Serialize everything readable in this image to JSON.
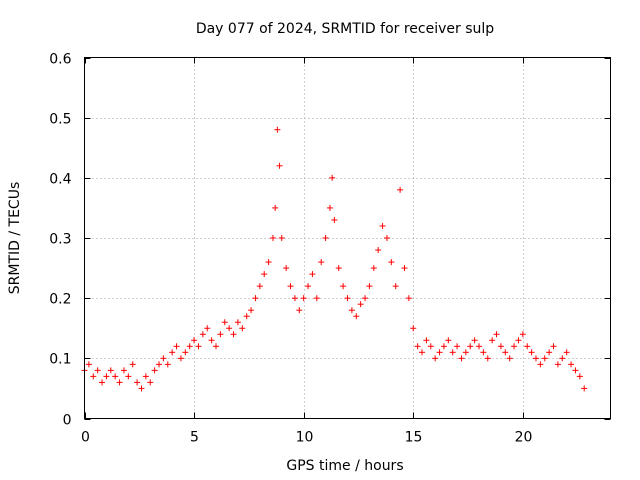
{
  "chart_data": {
    "type": "scatter",
    "title": "Day 077 of 2024, SRMTID for receiver sulp",
    "xlabel": "GPS time / hours",
    "ylabel": "SRMTID / TECUs",
    "xlim": [
      0,
      24
    ],
    "ylim": [
      0,
      0.6
    ],
    "x_ticks": [
      0,
      5,
      10,
      15,
      20
    ],
    "x_tick_labels": [
      "0",
      "5",
      "10",
      "15",
      "20"
    ],
    "y_ticks": [
      0,
      0.1,
      0.2,
      0.3,
      0.4,
      0.5,
      0.6
    ],
    "y_tick_labels": [
      "0",
      "0.1",
      "0.2",
      "0.3",
      "0.4",
      "0.5",
      "0.6"
    ],
    "grid": true,
    "marker": "+",
    "series_color": "#ff0000",
    "series": [
      {
        "name": "SRMTID",
        "x": [
          0.0,
          0.2,
          0.4,
          0.6,
          0.8,
          1.0,
          1.2,
          1.4,
          1.6,
          1.8,
          2.0,
          2.2,
          2.4,
          2.6,
          2.8,
          3.0,
          3.2,
          3.4,
          3.6,
          3.8,
          4.0,
          4.2,
          4.4,
          4.6,
          4.8,
          5.0,
          5.2,
          5.4,
          5.6,
          5.8,
          6.0,
          6.2,
          6.4,
          6.6,
          6.8,
          7.0,
          7.2,
          7.4,
          7.6,
          7.8,
          8.0,
          8.2,
          8.4,
          8.6,
          8.7,
          8.8,
          8.9,
          9.0,
          9.2,
          9.4,
          9.6,
          9.8,
          10.0,
          10.2,
          10.4,
          10.6,
          10.8,
          11.0,
          11.2,
          11.3,
          11.4,
          11.6,
          11.8,
          12.0,
          12.2,
          12.4,
          12.6,
          12.8,
          13.0,
          13.2,
          13.4,
          13.6,
          13.8,
          14.0,
          14.2,
          14.4,
          14.6,
          14.8,
          15.0,
          15.2,
          15.4,
          15.6,
          15.8,
          16.0,
          16.2,
          16.4,
          16.6,
          16.8,
          17.0,
          17.2,
          17.4,
          17.6,
          17.8,
          18.0,
          18.2,
          18.4,
          18.6,
          18.8,
          19.0,
          19.2,
          19.4,
          19.6,
          19.8,
          20.0,
          20.2,
          20.4,
          20.6,
          20.8,
          21.0,
          21.2,
          21.4,
          21.6,
          21.8,
          22.0,
          22.2,
          22.4,
          22.6,
          22.8
        ],
        "y": [
          0.08,
          0.09,
          0.07,
          0.08,
          0.06,
          0.07,
          0.08,
          0.07,
          0.06,
          0.08,
          0.07,
          0.09,
          0.06,
          0.05,
          0.07,
          0.06,
          0.08,
          0.09,
          0.1,
          0.09,
          0.11,
          0.12,
          0.1,
          0.11,
          0.12,
          0.13,
          0.12,
          0.14,
          0.15,
          0.13,
          0.12,
          0.14,
          0.16,
          0.15,
          0.14,
          0.16,
          0.15,
          0.17,
          0.18,
          0.2,
          0.22,
          0.24,
          0.26,
          0.3,
          0.35,
          0.48,
          0.42,
          0.3,
          0.25,
          0.22,
          0.2,
          0.18,
          0.2,
          0.22,
          0.24,
          0.2,
          0.26,
          0.3,
          0.35,
          0.4,
          0.33,
          0.25,
          0.22,
          0.2,
          0.18,
          0.17,
          0.19,
          0.2,
          0.22,
          0.25,
          0.28,
          0.32,
          0.3,
          0.26,
          0.22,
          0.38,
          0.25,
          0.2,
          0.15,
          0.12,
          0.11,
          0.13,
          0.12,
          0.1,
          0.11,
          0.12,
          0.13,
          0.11,
          0.12,
          0.1,
          0.11,
          0.12,
          0.13,
          0.12,
          0.11,
          0.1,
          0.13,
          0.14,
          0.12,
          0.11,
          0.1,
          0.12,
          0.13,
          0.14,
          0.12,
          0.11,
          0.1,
          0.09,
          0.1,
          0.11,
          0.12,
          0.09,
          0.1,
          0.11,
          0.09,
          0.08,
          0.07,
          0.05
        ]
      }
    ]
  }
}
